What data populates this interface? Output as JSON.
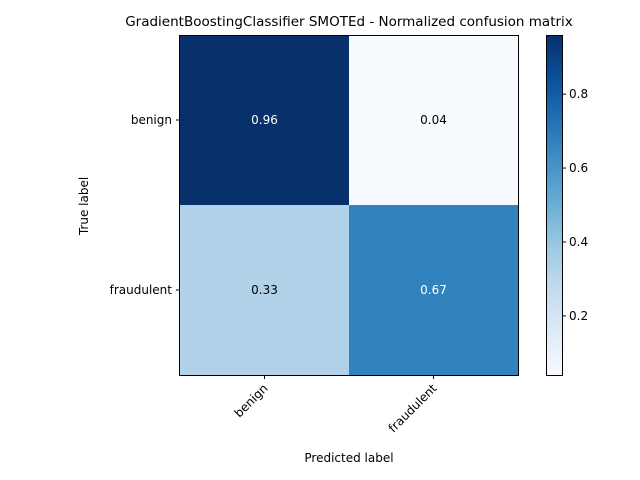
{
  "chart_data": {
    "type": "heatmap",
    "title": "GradientBoostingClassifier SMOTEd - Normalized confusion matrix",
    "xlabel": "Predicted label",
    "ylabel": "True label",
    "x_categories": [
      "benign",
      "fraudulent"
    ],
    "y_categories": [
      "benign",
      "fraudulent"
    ],
    "values": [
      [
        0.96,
        0.04
      ],
      [
        0.33,
        0.67
      ]
    ],
    "value_labels": [
      [
        "0.96",
        "0.04"
      ],
      [
        "0.33",
        "0.67"
      ]
    ],
    "colormap": "Blues",
    "colorbar": {
      "range": [
        0.04,
        0.96
      ],
      "ticks": [
        0.2,
        0.4,
        0.6,
        0.8
      ],
      "tick_labels": [
        "0.2",
        "0.4",
        "0.6",
        "0.8"
      ]
    },
    "grid": false
  }
}
